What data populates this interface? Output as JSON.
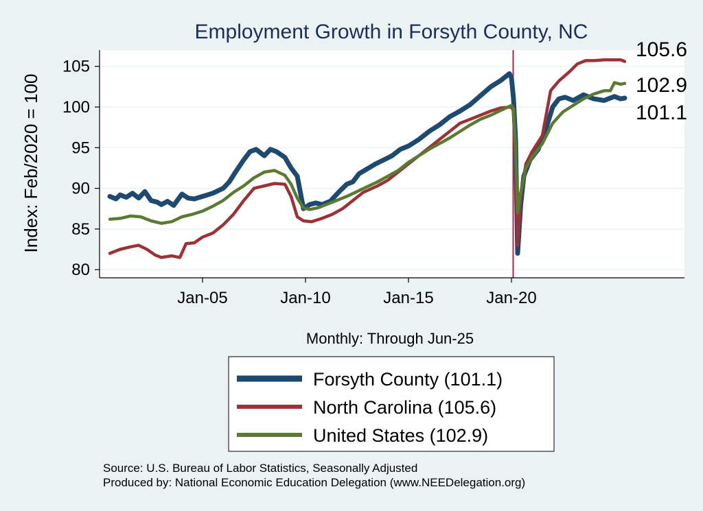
{
  "chart_data": {
    "type": "line",
    "title": "Employment Growth in Forsyth  County, NC",
    "ylabel": "Index: Feb/2020 = 100",
    "xlabel": "Monthly: Through Jun-25",
    "ylim": [
      79,
      107
    ],
    "yticks": [
      80,
      85,
      90,
      95,
      100,
      105
    ],
    "xticks": [
      {
        "value": 2005.0,
        "label": "Jan-05"
      },
      {
        "value": 2010.0,
        "label": "Jan-10"
      },
      {
        "value": 2015.0,
        "label": "Jan-15"
      },
      {
        "value": 2020.0,
        "label": "Jan-20"
      }
    ],
    "xlim": [
      2000.0,
      2028.4
    ],
    "grid": true,
    "reference_line": {
      "x": 2020.083,
      "color": "#b32645"
    },
    "legend_position": "bottom",
    "series": [
      {
        "name": "Forsyth  County (101.1)",
        "color": "#1f4a70",
        "end_label": "101.1",
        "points": [
          [
            2000.5,
            89.0
          ],
          [
            2000.8,
            88.7
          ],
          [
            2001.0,
            89.2
          ],
          [
            2001.3,
            88.9
          ],
          [
            2001.6,
            89.4
          ],
          [
            2001.9,
            88.8
          ],
          [
            2002.2,
            89.6
          ],
          [
            2002.5,
            88.5
          ],
          [
            2002.8,
            88.3
          ],
          [
            2003.0,
            88.0
          ],
          [
            2003.3,
            88.4
          ],
          [
            2003.6,
            87.9
          ],
          [
            2004.0,
            89.3
          ],
          [
            2004.3,
            88.8
          ],
          [
            2004.6,
            88.7
          ],
          [
            2005.0,
            89.0
          ],
          [
            2005.5,
            89.4
          ],
          [
            2006.0,
            90.0
          ],
          [
            2006.3,
            90.8
          ],
          [
            2006.6,
            92.0
          ],
          [
            2007.0,
            93.5
          ],
          [
            2007.3,
            94.5
          ],
          [
            2007.6,
            94.8
          ],
          [
            2008.0,
            94.0
          ],
          [
            2008.3,
            94.8
          ],
          [
            2008.6,
            94.5
          ],
          [
            2009.0,
            93.8
          ],
          [
            2009.3,
            92.5
          ],
          [
            2009.6,
            91.5
          ],
          [
            2009.9,
            87.5
          ],
          [
            2010.2,
            88.0
          ],
          [
            2010.5,
            88.2
          ],
          [
            2010.8,
            88.0
          ],
          [
            2011.2,
            88.4
          ],
          [
            2011.6,
            89.5
          ],
          [
            2012.0,
            90.5
          ],
          [
            2012.3,
            90.8
          ],
          [
            2012.6,
            91.8
          ],
          [
            2013.0,
            92.4
          ],
          [
            2013.4,
            93.0
          ],
          [
            2013.8,
            93.5
          ],
          [
            2014.2,
            94.0
          ],
          [
            2014.6,
            94.8
          ],
          [
            2015.0,
            95.2
          ],
          [
            2015.5,
            96.0
          ],
          [
            2016.0,
            97.0
          ],
          [
            2016.5,
            97.8
          ],
          [
            2017.0,
            98.8
          ],
          [
            2017.5,
            99.5
          ],
          [
            2018.0,
            100.3
          ],
          [
            2018.5,
            101.4
          ],
          [
            2019.0,
            102.5
          ],
          [
            2019.5,
            103.3
          ],
          [
            2019.9,
            104.1
          ],
          [
            2020.0,
            103.6
          ],
          [
            2020.1,
            101.0
          ],
          [
            2020.2,
            96.0
          ],
          [
            2020.3,
            82.0
          ],
          [
            2020.45,
            88.0
          ],
          [
            2020.6,
            91.5
          ],
          [
            2020.9,
            93.5
          ],
          [
            2021.3,
            94.8
          ],
          [
            2021.7,
            97.5
          ],
          [
            2022.0,
            100.0
          ],
          [
            2022.3,
            101.0
          ],
          [
            2022.6,
            101.2
          ],
          [
            2023.0,
            100.8
          ],
          [
            2023.5,
            101.5
          ],
          [
            2024.0,
            101.0
          ],
          [
            2024.5,
            100.8
          ],
          [
            2025.0,
            101.3
          ],
          [
            2025.3,
            101.0
          ],
          [
            2025.5,
            101.1
          ]
        ]
      },
      {
        "name": "North Carolina (105.6)",
        "color": "#9c3236",
        "end_label": "105.6",
        "points": [
          [
            2000.5,
            82.0
          ],
          [
            2001.0,
            82.5
          ],
          [
            2001.5,
            82.8
          ],
          [
            2001.9,
            83.0
          ],
          [
            2002.3,
            82.5
          ],
          [
            2002.7,
            81.8
          ],
          [
            2003.0,
            81.5
          ],
          [
            2003.5,
            81.7
          ],
          [
            2003.9,
            81.5
          ],
          [
            2004.2,
            83.2
          ],
          [
            2004.6,
            83.3
          ],
          [
            2005.0,
            84.0
          ],
          [
            2005.5,
            84.5
          ],
          [
            2006.0,
            85.5
          ],
          [
            2006.5,
            86.8
          ],
          [
            2007.0,
            88.5
          ],
          [
            2007.5,
            90.0
          ],
          [
            2008.0,
            90.3
          ],
          [
            2008.5,
            90.6
          ],
          [
            2009.0,
            90.5
          ],
          [
            2009.3,
            89.0
          ],
          [
            2009.6,
            86.5
          ],
          [
            2009.9,
            86.0
          ],
          [
            2010.3,
            85.9
          ],
          [
            2010.8,
            86.3
          ],
          [
            2011.3,
            86.8
          ],
          [
            2011.8,
            87.5
          ],
          [
            2012.3,
            88.5
          ],
          [
            2012.8,
            89.5
          ],
          [
            2013.5,
            90.3
          ],
          [
            2014.0,
            91.0
          ],
          [
            2014.5,
            92.0
          ],
          [
            2015.0,
            93.0
          ],
          [
            2015.5,
            94.0
          ],
          [
            2016.0,
            95.0
          ],
          [
            2016.5,
            96.0
          ],
          [
            2017.0,
            97.0
          ],
          [
            2017.5,
            98.0
          ],
          [
            2018.0,
            98.5
          ],
          [
            2018.5,
            99.0
          ],
          [
            2019.0,
            99.5
          ],
          [
            2019.5,
            99.9
          ],
          [
            2020.0,
            100.0
          ],
          [
            2020.1,
            99.5
          ],
          [
            2020.2,
            94.0
          ],
          [
            2020.3,
            83.0
          ],
          [
            2020.45,
            89.0
          ],
          [
            2020.7,
            93.0
          ],
          [
            2021.0,
            94.5
          ],
          [
            2021.5,
            96.5
          ],
          [
            2021.9,
            102.0
          ],
          [
            2022.3,
            103.2
          ],
          [
            2022.8,
            104.3
          ],
          [
            2023.2,
            105.3
          ],
          [
            2023.6,
            105.7
          ],
          [
            2024.0,
            105.7
          ],
          [
            2024.5,
            105.8
          ],
          [
            2025.0,
            105.8
          ],
          [
            2025.3,
            105.8
          ],
          [
            2025.5,
            105.6
          ]
        ]
      },
      {
        "name": "United States (102.9)",
        "color": "#5a7a32",
        "end_label": "102.9",
        "points": [
          [
            2000.5,
            86.2
          ],
          [
            2001.0,
            86.3
          ],
          [
            2001.5,
            86.6
          ],
          [
            2002.0,
            86.5
          ],
          [
            2002.5,
            86.0
          ],
          [
            2003.0,
            85.7
          ],
          [
            2003.5,
            85.9
          ],
          [
            2004.0,
            86.5
          ],
          [
            2004.5,
            86.8
          ],
          [
            2005.0,
            87.2
          ],
          [
            2005.5,
            87.8
          ],
          [
            2006.0,
            88.5
          ],
          [
            2006.5,
            89.5
          ],
          [
            2007.0,
            90.3
          ],
          [
            2007.5,
            91.3
          ],
          [
            2008.0,
            92.0
          ],
          [
            2008.5,
            92.2
          ],
          [
            2009.0,
            91.6
          ],
          [
            2009.3,
            90.5
          ],
          [
            2009.6,
            88.8
          ],
          [
            2009.9,
            87.6
          ],
          [
            2010.2,
            87.4
          ],
          [
            2010.6,
            87.6
          ],
          [
            2011.0,
            88.0
          ],
          [
            2011.5,
            88.5
          ],
          [
            2012.0,
            89.0
          ],
          [
            2012.5,
            89.6
          ],
          [
            2013.0,
            90.2
          ],
          [
            2013.5,
            90.8
          ],
          [
            2014.0,
            91.5
          ],
          [
            2014.5,
            92.2
          ],
          [
            2015.0,
            93.2
          ],
          [
            2015.5,
            94.0
          ],
          [
            2016.0,
            94.8
          ],
          [
            2016.5,
            95.5
          ],
          [
            2017.0,
            96.2
          ],
          [
            2017.5,
            97.0
          ],
          [
            2018.0,
            97.8
          ],
          [
            2018.5,
            98.5
          ],
          [
            2019.0,
            99.0
          ],
          [
            2019.5,
            99.6
          ],
          [
            2020.0,
            100.2
          ],
          [
            2020.1,
            99.8
          ],
          [
            2020.2,
            95.0
          ],
          [
            2020.3,
            87.0
          ],
          [
            2020.45,
            89.5
          ],
          [
            2020.7,
            92.5
          ],
          [
            2021.0,
            93.8
          ],
          [
            2021.5,
            95.5
          ],
          [
            2022.0,
            98.0
          ],
          [
            2022.5,
            99.4
          ],
          [
            2023.0,
            100.2
          ],
          [
            2023.5,
            101.0
          ],
          [
            2024.0,
            101.6
          ],
          [
            2024.5,
            102.0
          ],
          [
            2024.8,
            102.0
          ],
          [
            2025.0,
            103.0
          ],
          [
            2025.3,
            102.8
          ],
          [
            2025.5,
            102.9
          ]
        ]
      }
    ]
  },
  "source": {
    "line1": "Source: U.S. Bureau of Labor Statistics, Seasonally Adjusted",
    "line2": "Produced by: National Economic Education Delegation (www.NEEDelegation.org)"
  }
}
